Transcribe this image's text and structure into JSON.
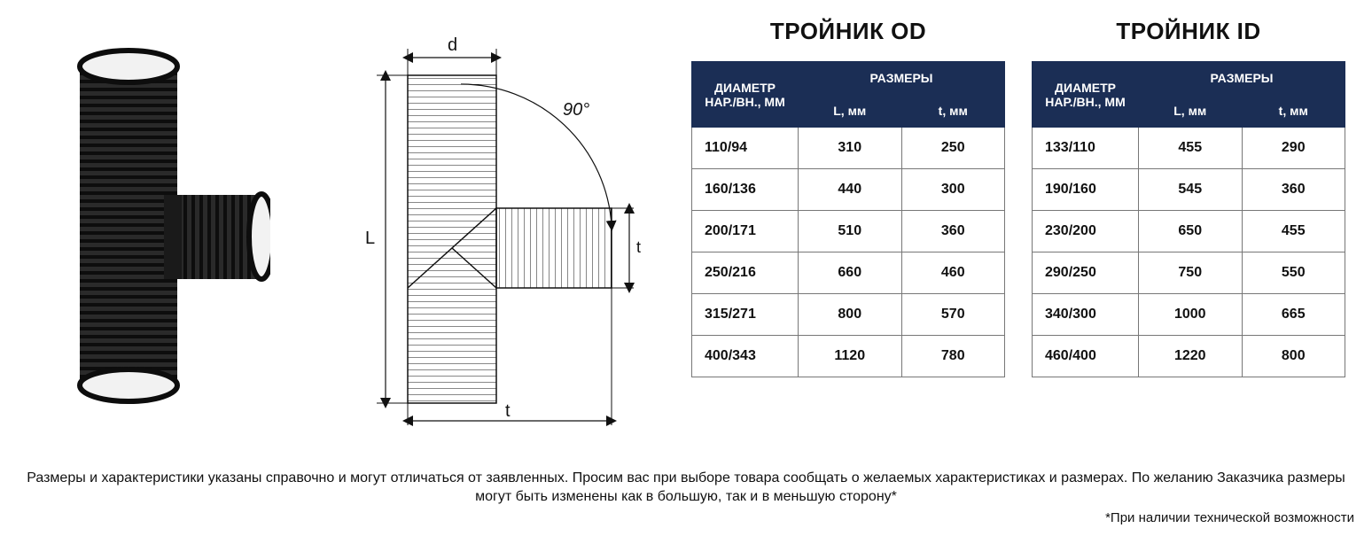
{
  "photo": {
    "pipe_color": "#1a1a1a",
    "bore_color": "#f4f4f4",
    "rib_spacing": 9
  },
  "diagram": {
    "labels": {
      "d": "d",
      "L": "L",
      "t": "t",
      "angle": "90°"
    },
    "stroke": "#111111",
    "hatch_spacing": 7
  },
  "tables": [
    {
      "title": "ТРОЙНИК OD",
      "header_diam": "ДИАМЕТР НАР./ВН., ММ",
      "header_sizes": "РАЗМЕРЫ",
      "sub_L": "L, мм",
      "sub_t": "t, мм",
      "header_bg": "#1b2e55",
      "rows": [
        [
          "110/94",
          "310",
          "250"
        ],
        [
          "160/136",
          "440",
          "300"
        ],
        [
          "200/171",
          "510",
          "360"
        ],
        [
          "250/216",
          "660",
          "460"
        ],
        [
          "315/271",
          "800",
          "570"
        ],
        [
          "400/343",
          "1120",
          "780"
        ]
      ]
    },
    {
      "title": "ТРОЙНИК ID",
      "header_diam": "ДИАМЕТР НАР./ВН., ММ",
      "header_sizes": "РАЗМЕРЫ",
      "sub_L": "L, мм",
      "sub_t": "t, мм",
      "header_bg": "#1b2e55",
      "rows": [
        [
          "133/110",
          "455",
          "290"
        ],
        [
          "190/160",
          "545",
          "360"
        ],
        [
          "230/200",
          "650",
          "455"
        ],
        [
          "290/250",
          "750",
          "550"
        ],
        [
          "340/300",
          "1000",
          "665"
        ],
        [
          "460/400",
          "1220",
          "800"
        ]
      ]
    }
  ],
  "footer": {
    "main": "Размеры и характеристики указаны справочно и могут отличаться от заявленных. Просим вас при выборе товара сообщать о желаемых характеристиках и размерах. По желанию Заказчика размеры могут быть изменены как в большую, так и в меньшую сторону*",
    "note": "*При наличии технической возможности"
  }
}
